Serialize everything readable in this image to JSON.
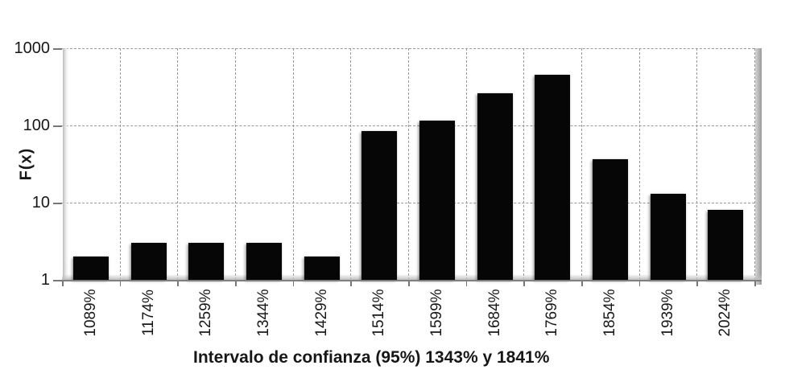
{
  "chart_data": {
    "type": "bar",
    "title": "",
    "xlabel": "Intervalo de confianza (95%) 1343% y 1841%",
    "ylabel": "F(x)",
    "categories": [
      "1089%",
      "1174%",
      "1259%",
      "1344%",
      "1429%",
      "1514%",
      "1599%",
      "1684%",
      "1769%",
      "1854%",
      "1939%",
      "2024%"
    ],
    "values": [
      2,
      3,
      3,
      3,
      2,
      85,
      115,
      260,
      450,
      37,
      13,
      8
    ],
    "yscale": "log",
    "ytick_labels": [
      "1",
      "10",
      "100",
      "1000"
    ],
    "ytick_values": [
      1,
      10,
      100,
      1000
    ],
    "ylim": [
      1,
      1000
    ],
    "grid": "dashed horizontal and vertical gridlines",
    "legend": "none",
    "bar_color": "#060606",
    "gridline_color": "#999999",
    "axis_color": "#7f7f7f",
    "text_color": "#171717"
  }
}
